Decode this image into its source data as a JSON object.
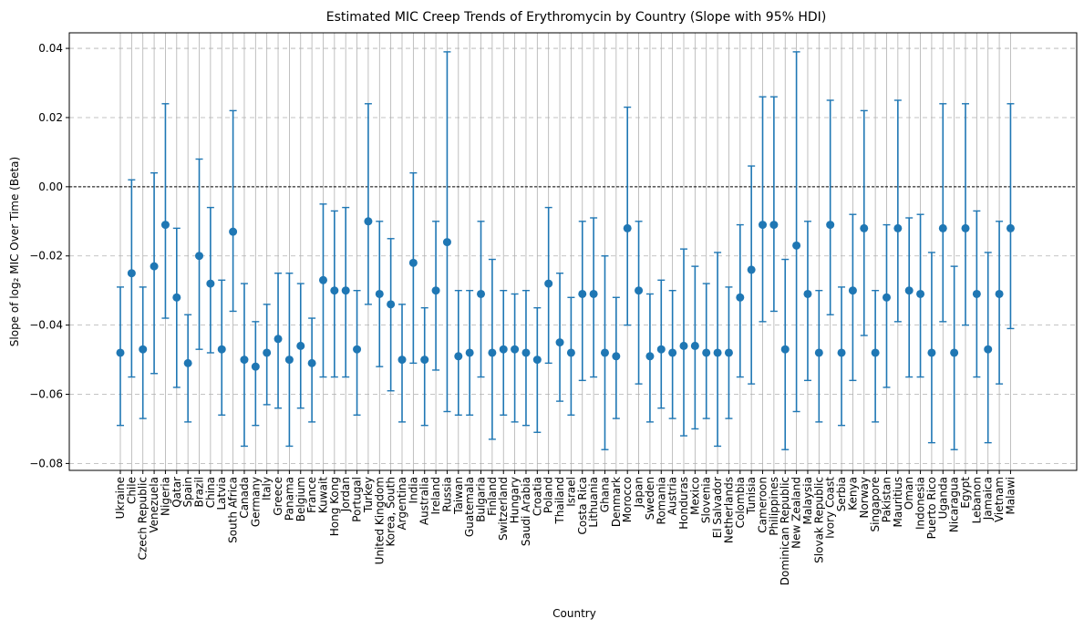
{
  "chart_data": {
    "type": "scatter",
    "title": "Estimated MIC Creep Trends of Erythromycin by Country (Slope with 95% HDI)",
    "xlabel": "Country",
    "ylabel": "Slope of log₂ MIC Over Time (Beta)",
    "ylim": [
      -0.082,
      0.0445
    ],
    "yticks": [
      -0.08,
      -0.06,
      -0.04,
      -0.02,
      0.0,
      0.02,
      0.04
    ],
    "ytick_labels": [
      "−0.08",
      "−0.06",
      "−0.04",
      "−0.02",
      "0.00",
      "0.02",
      "0.04"
    ],
    "reference_line": 0.0,
    "grid": {
      "x": true,
      "y": true,
      "y_style": "dashed"
    },
    "colors": {
      "marker": "#1f77b4",
      "reference_line": "#000000",
      "grid": "#b0b0b0"
    },
    "categories": [
      "Ukraine",
      "Chile",
      "Czech Republic",
      "Venezuela",
      "Nigeria",
      "Qatar",
      "Spain",
      "Brazil",
      "China",
      "Latvia",
      "South Africa",
      "Canada",
      "Germany",
      "Italy",
      "Greece",
      "Panama",
      "Belgium",
      "France",
      "Kuwait",
      "Hong Kong",
      "Jordan",
      "Portugal",
      "Turkey",
      "United Kingdom",
      "Korea, South",
      "Argentina",
      "India",
      "Australia",
      "Ireland",
      "Russia",
      "Taiwan",
      "Guatemala",
      "Bulgaria",
      "Finland",
      "Switzerland",
      "Hungary",
      "Saudi Arabia",
      "Croatia",
      "Poland",
      "Thailand",
      "Israel",
      "Costa Rica",
      "Lithuania",
      "Ghana",
      "Denmark",
      "Morocco",
      "Japan",
      "Sweden",
      "Romania",
      "Austria",
      "Honduras",
      "Mexico",
      "Slovenia",
      "El Salvador",
      "Netherlands",
      "Colombia",
      "Tunisia",
      "Cameroon",
      "Philippines",
      "Dominican Republic",
      "New Zealand",
      "Malaysia",
      "Slovak Republic",
      "Ivory Coast",
      "Serbia",
      "Kenya",
      "Norway",
      "Singapore",
      "Pakistan",
      "Mauritius",
      "Oman",
      "Indonesia",
      "Puerto Rico",
      "Uganda",
      "Nicaragua",
      "Egypt",
      "Lebanon",
      "Jamaica",
      "Vietnam",
      "Malawi"
    ],
    "series": [
      {
        "values": [
          -0.048,
          -0.025,
          -0.047,
          -0.023,
          -0.011,
          -0.032,
          -0.051,
          -0.02,
          -0.028,
          -0.047,
          -0.013,
          -0.05,
          -0.052,
          -0.048,
          -0.044,
          -0.05,
          -0.046,
          -0.051,
          -0.027,
          -0.03,
          -0.03,
          -0.047,
          -0.01,
          -0.031,
          -0.034,
          -0.05,
          -0.022,
          -0.05,
          -0.03,
          -0.016,
          -0.049,
          -0.048,
          -0.031,
          -0.048,
          -0.047,
          -0.047,
          -0.048,
          -0.05,
          -0.028,
          -0.045,
          -0.048,
          -0.031,
          -0.031,
          -0.048,
          -0.049,
          -0.012,
          -0.03,
          -0.049,
          -0.047,
          -0.048,
          -0.046,
          -0.046,
          -0.048,
          -0.048,
          -0.048,
          -0.032,
          -0.024,
          -0.011,
          -0.011,
          -0.047,
          -0.017,
          -0.031,
          -0.048,
          -0.011,
          -0.048,
          -0.03,
          -0.012,
          -0.048,
          -0.032,
          -0.012,
          -0.03,
          -0.031,
          -0.048,
          -0.012,
          -0.048,
          -0.012,
          -0.031,
          -0.047,
          -0.031,
          -0.012
        ],
        "lower": [
          -0.069,
          -0.055,
          -0.067,
          -0.054,
          -0.038,
          -0.058,
          -0.068,
          -0.047,
          -0.048,
          -0.066,
          -0.036,
          -0.075,
          -0.069,
          -0.063,
          -0.064,
          -0.075,
          -0.064,
          -0.068,
          -0.055,
          -0.055,
          -0.055,
          -0.066,
          -0.034,
          -0.052,
          -0.059,
          -0.068,
          -0.051,
          -0.069,
          -0.053,
          -0.065,
          -0.066,
          -0.066,
          -0.055,
          -0.073,
          -0.066,
          -0.068,
          -0.069,
          -0.071,
          -0.051,
          -0.062,
          -0.066,
          -0.056,
          -0.055,
          -0.076,
          -0.067,
          -0.04,
          -0.057,
          -0.068,
          -0.064,
          -0.067,
          -0.072,
          -0.07,
          -0.067,
          -0.075,
          -0.067,
          -0.055,
          -0.057,
          -0.039,
          -0.036,
          -0.076,
          -0.065,
          -0.056,
          -0.068,
          -0.037,
          -0.069,
          -0.056,
          -0.043,
          -0.068,
          -0.058,
          -0.039,
          -0.055,
          -0.055,
          -0.074,
          -0.039,
          -0.076,
          -0.04,
          -0.055,
          -0.074,
          -0.057,
          -0.041
        ],
        "upper": [
          -0.029,
          0.002,
          -0.029,
          0.004,
          0.024,
          -0.012,
          -0.037,
          0.008,
          -0.006,
          -0.027,
          0.022,
          -0.028,
          -0.039,
          -0.034,
          -0.025,
          -0.025,
          -0.028,
          -0.038,
          -0.005,
          -0.007,
          -0.006,
          -0.03,
          0.024,
          -0.01,
          -0.015,
          -0.034,
          0.004,
          -0.035,
          -0.01,
          0.039,
          -0.03,
          -0.03,
          -0.01,
          -0.021,
          -0.03,
          -0.031,
          -0.03,
          -0.035,
          -0.006,
          -0.025,
          -0.032,
          -0.01,
          -0.009,
          -0.02,
          -0.032,
          0.023,
          -0.01,
          -0.031,
          -0.027,
          -0.03,
          -0.018,
          -0.023,
          -0.028,
          -0.019,
          -0.029,
          -0.011,
          0.006,
          0.026,
          0.026,
          -0.021,
          0.039,
          -0.01,
          -0.03,
          0.025,
          -0.029,
          -0.008,
          0.022,
          -0.03,
          -0.011,
          0.025,
          -0.009,
          -0.008,
          -0.019,
          0.024,
          -0.023,
          0.024,
          -0.007,
          -0.019,
          -0.01,
          0.024
        ]
      }
    ]
  }
}
